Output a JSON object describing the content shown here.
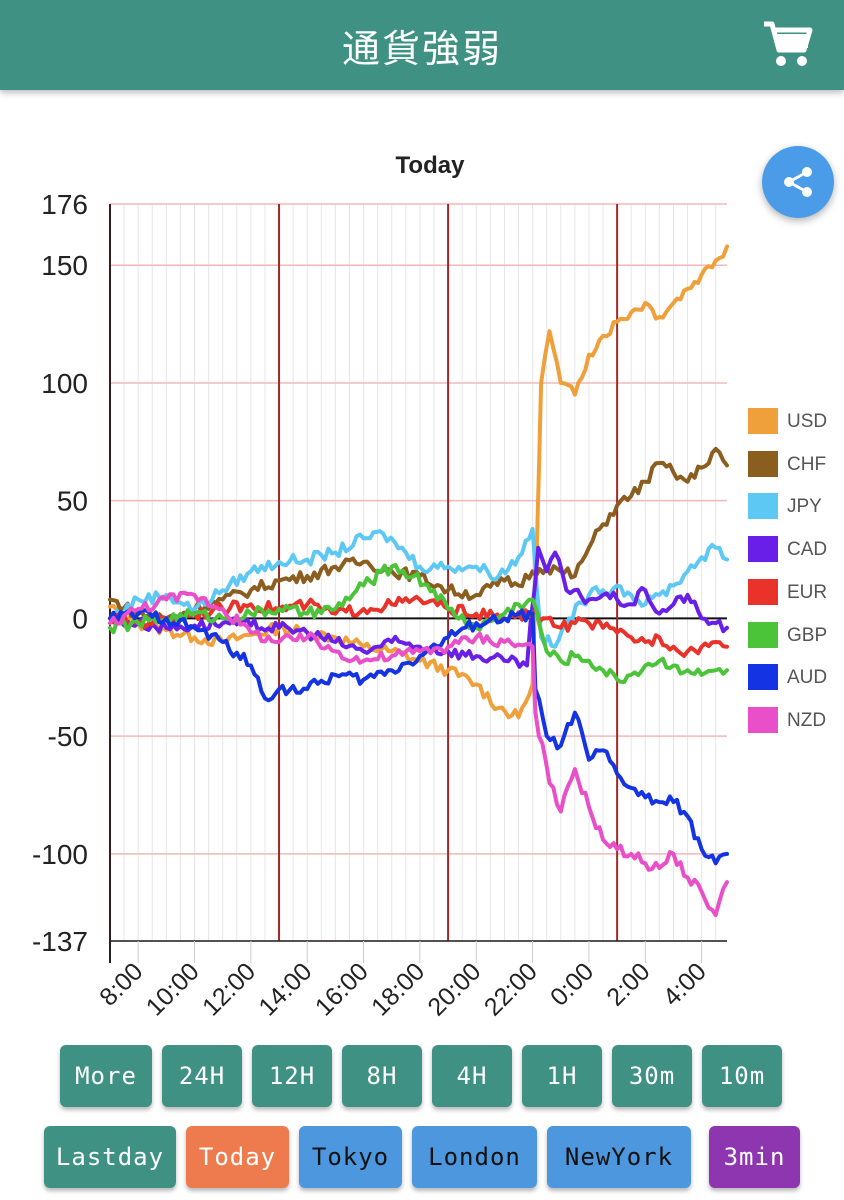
{
  "header": {
    "title": "通貨強弱",
    "cart_icon": "cart-icon"
  },
  "share": {
    "icon": "share-icon",
    "color": "#4a9be8"
  },
  "colors": {
    "header": "#3f9283",
    "teal_button": "#3f9283",
    "orange_button": "#ee7b4e",
    "blue_button": "#4c97de",
    "purple_button": "#8e35b0"
  },
  "chart_data": {
    "type": "line",
    "title": "Today",
    "y_ticks": [
      "176",
      "150",
      "100",
      "50",
      "0",
      "-50",
      "-100",
      "-137"
    ],
    "ylim": [
      -137,
      176
    ],
    "x_ticks": [
      "8:00",
      "10:00",
      "12:00",
      "14:00",
      "16:00",
      "18:00",
      "20:00",
      "22:00",
      "0:00",
      "2:00",
      "4:00"
    ],
    "x_tick_hours": [
      8,
      10,
      12,
      14,
      16,
      18,
      20,
      22,
      24,
      26,
      28
    ],
    "x_range_hours": [
      7,
      28.9
    ],
    "session_lines_hours": [
      7,
      13,
      19,
      25
    ],
    "grid": true,
    "legend_position": "right",
    "series": [
      {
        "name": "USD",
        "color": "#f0a03a",
        "x": [
          7,
          8,
          9,
          10,
          11,
          12,
          13,
          14,
          15,
          16,
          17,
          18,
          19,
          20,
          20.8,
          21.5,
          22,
          22.15,
          22.3,
          22.6,
          23,
          23.5,
          24,
          24.5,
          25,
          25.5,
          26,
          26.5,
          27,
          27.5,
          28,
          28.5,
          28.9
        ],
        "y": [
          5,
          -2,
          -5,
          -8,
          -10,
          -7,
          -4,
          -6,
          -8,
          -12,
          -14,
          -18,
          -22,
          -28,
          -38,
          -42,
          -28,
          30,
          100,
          122,
          100,
          95,
          112,
          120,
          126,
          130,
          134,
          128,
          134,
          140,
          146,
          152,
          158
        ]
      },
      {
        "name": "CHF",
        "color": "#8b5e20",
        "x": [
          7,
          8,
          9,
          10,
          11,
          12,
          13,
          14,
          15,
          16,
          17,
          18,
          19,
          20,
          21,
          21.5,
          22,
          22.5,
          23,
          23.5,
          24,
          24.5,
          25,
          25.5,
          26,
          26.5,
          27,
          27.5,
          28,
          28.5,
          28.9
        ],
        "y": [
          8,
          2,
          0,
          4,
          8,
          12,
          16,
          18,
          22,
          24,
          20,
          18,
          12,
          10,
          16,
          14,
          20,
          22,
          20,
          18,
          30,
          40,
          48,
          52,
          58,
          66,
          62,
          58,
          64,
          72,
          65
        ]
      },
      {
        "name": "JPY",
        "color": "#5ec8f5",
        "x": [
          7,
          8,
          9,
          10,
          11,
          12,
          13,
          14,
          15,
          16,
          16.7,
          17.5,
          18,
          19,
          20,
          20.8,
          21.5,
          22,
          22.3,
          22.8,
          23.3,
          24,
          24.5,
          25,
          25.5,
          26,
          26.5,
          27,
          27.5,
          28,
          28.5,
          28.9
        ],
        "y": [
          0,
          8,
          10,
          4,
          12,
          20,
          24,
          25,
          28,
          34,
          36,
          28,
          22,
          22,
          22,
          18,
          26,
          38,
          -8,
          -12,
          0,
          10,
          12,
          14,
          10,
          6,
          10,
          14,
          20,
          26,
          30,
          25
        ]
      },
      {
        "name": "CAD",
        "color": "#6a1fe8",
        "x": [
          7,
          8,
          9,
          10,
          11,
          12,
          13,
          14,
          15,
          16,
          17,
          18,
          19,
          20,
          21,
          21.8,
          22.2,
          22.5,
          22.8,
          23.2,
          24,
          24.5,
          25,
          25.5,
          26,
          26.5,
          27,
          27.5,
          28,
          28.5,
          28.9
        ],
        "y": [
          0,
          -2,
          -4,
          -3,
          -2,
          -3,
          -4,
          -6,
          -10,
          -14,
          -10,
          -12,
          -14,
          -16,
          -18,
          -20,
          30,
          20,
          28,
          12,
          8,
          10,
          8,
          6,
          12,
          2,
          6,
          10,
          0,
          -2,
          -4
        ]
      },
      {
        "name": "EUR",
        "color": "#e8322a",
        "x": [
          7,
          8,
          9,
          10,
          11,
          12,
          13,
          14,
          15,
          16,
          17,
          18,
          19,
          20,
          21,
          22,
          22.5,
          23,
          23.5,
          24,
          24.5,
          25,
          25.5,
          26,
          26.5,
          27,
          27.5,
          28,
          28.5,
          28.9
        ],
        "y": [
          0,
          -2,
          0,
          2,
          4,
          6,
          4,
          6,
          2,
          4,
          6,
          8,
          4,
          2,
          0,
          2,
          0,
          -4,
          -2,
          -2,
          -4,
          -6,
          -8,
          -10,
          -8,
          -12,
          -14,
          -12,
          -10,
          -12
        ]
      },
      {
        "name": "GBP",
        "color": "#4cc43a",
        "x": [
          7,
          8,
          9,
          10,
          11,
          12,
          13,
          14,
          15,
          16,
          17,
          17.8,
          18.5,
          19,
          20,
          21,
          21.5,
          22,
          22.5,
          23,
          23.5,
          24,
          24.5,
          25,
          25.5,
          26,
          26.5,
          27,
          27.5,
          28,
          28.5,
          28.9
        ],
        "y": [
          -4,
          -2,
          0,
          2,
          0,
          2,
          4,
          2,
          4,
          14,
          22,
          18,
          12,
          4,
          -4,
          2,
          6,
          8,
          -14,
          -18,
          -16,
          -18,
          -22,
          -26,
          -24,
          -20,
          -18,
          -20,
          -22,
          -24,
          -22,
          -22
        ]
      },
      {
        "name": "AUD",
        "color": "#1434e4",
        "x": [
          7,
          8,
          9,
          10,
          11,
          12,
          12.5,
          13,
          14,
          15,
          16,
          17,
          18,
          19,
          20,
          21,
          22,
          22.1,
          22.5,
          23,
          23.5,
          24,
          24.5,
          25,
          25.5,
          26,
          26.5,
          27,
          27.5,
          28,
          28.5,
          28.9
        ],
        "y": [
          0,
          2,
          0,
          -4,
          -10,
          -20,
          -34,
          -30,
          -30,
          -24,
          -26,
          -22,
          -16,
          -8,
          -2,
          0,
          2,
          -30,
          -50,
          -54,
          -40,
          -60,
          -56,
          -66,
          -72,
          -76,
          -78,
          -78,
          -84,
          -98,
          -104,
          -100
        ]
      },
      {
        "name": "NZD",
        "color": "#e84fc8",
        "x": [
          7,
          8,
          9,
          10,
          11,
          12,
          13,
          14,
          15,
          16,
          17,
          18,
          19,
          20,
          21,
          22,
          22.1,
          22.6,
          23,
          23.5,
          24,
          24.5,
          25,
          25.5,
          26,
          26.5,
          27,
          27.5,
          28,
          28.5,
          28.9
        ],
        "y": [
          -2,
          4,
          8,
          10,
          4,
          -6,
          -10,
          -8,
          -14,
          -18,
          -16,
          -14,
          -12,
          -8,
          -10,
          -12,
          -40,
          -70,
          -82,
          -64,
          -80,
          -94,
          -98,
          -100,
          -104,
          -106,
          -100,
          -110,
          -116,
          -126,
          -112
        ]
      }
    ]
  },
  "buttons_row1": [
    {
      "label": "More",
      "color": "#3f9283"
    },
    {
      "label": "24H",
      "color": "#3f9283"
    },
    {
      "label": "12H",
      "color": "#3f9283"
    },
    {
      "label": "8H",
      "color": "#3f9283"
    },
    {
      "label": "4H",
      "color": "#3f9283"
    },
    {
      "label": "1H",
      "color": "#3f9283"
    },
    {
      "label": "30m",
      "color": "#3f9283"
    },
    {
      "label": "10m",
      "color": "#3f9283"
    }
  ],
  "buttons_row2": [
    {
      "label": "Lastday",
      "color": "#3f9283"
    },
    {
      "label": "Today",
      "color": "#ee7b4e"
    },
    {
      "label": "Tokyo",
      "color": "#4c97de"
    },
    {
      "label": "London",
      "color": "#4c97de"
    },
    {
      "label": "NewYork",
      "color": "#4c97de"
    },
    {
      "label": "3min",
      "color": "#8e35b0"
    }
  ]
}
